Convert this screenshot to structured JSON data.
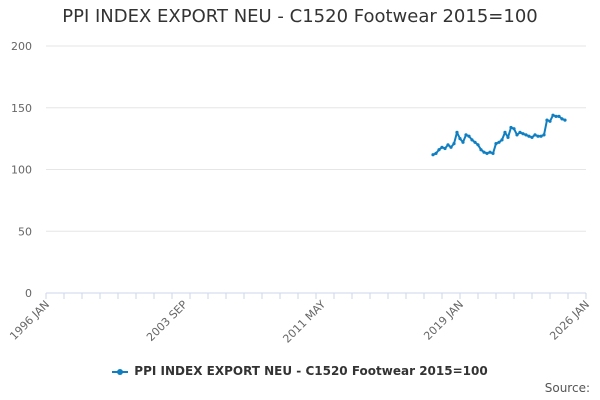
{
  "title": "PPI INDEX EXPORT NEU - C1520 Footwear 2015=100",
  "credits": "Source:",
  "colors": {
    "series": "#0f7fc2",
    "grid": "#e6e6e6",
    "axis": "#ccd6eb",
    "tick_text": "#666666"
  },
  "chart_data": {
    "type": "line",
    "title": "PPI INDEX EXPORT NEU - C1520 Footwear 2015=100",
    "xlabel": "",
    "ylabel": "",
    "ylim": [
      0,
      200
    ],
    "yticks": [
      0,
      50,
      100,
      150,
      200
    ],
    "xlim": [
      "1996-01",
      "2026-01"
    ],
    "xticks": [
      {
        "date": "1996-01",
        "label": "1996 JAN"
      },
      {
        "date": "2003-09",
        "label": "2003 SEP"
      },
      {
        "date": "2011-05",
        "label": "2011 MAY"
      },
      {
        "date": "2019-01",
        "label": "2019 JAN"
      },
      {
        "date": "2026-01",
        "label": "2026 JAN"
      }
    ],
    "grid": true,
    "legend": "bottom-center",
    "series": [
      {
        "name": "PPI INDEX EXPORT NEU - C1520 Footwear 2015=100",
        "points": [
          [
            "2017-07",
            112
          ],
          [
            "2017-09",
            113
          ],
          [
            "2017-11",
            116
          ],
          [
            "2018-01",
            118
          ],
          [
            "2018-03",
            117
          ],
          [
            "2018-05",
            120
          ],
          [
            "2018-07",
            118
          ],
          [
            "2018-09",
            121
          ],
          [
            "2018-11",
            130
          ],
          [
            "2019-01",
            125
          ],
          [
            "2019-03",
            122
          ],
          [
            "2019-05",
            128
          ],
          [
            "2019-07",
            127
          ],
          [
            "2019-09",
            124
          ],
          [
            "2019-11",
            122
          ],
          [
            "2020-01",
            120
          ],
          [
            "2020-03",
            116
          ],
          [
            "2020-05",
            114
          ],
          [
            "2020-07",
            113
          ],
          [
            "2020-09",
            114
          ],
          [
            "2020-11",
            113
          ],
          [
            "2021-01",
            121
          ],
          [
            "2021-03",
            122
          ],
          [
            "2021-05",
            124
          ],
          [
            "2021-07",
            130
          ],
          [
            "2021-09",
            126
          ],
          [
            "2021-11",
            134
          ],
          [
            "2022-01",
            133
          ],
          [
            "2022-03",
            128
          ],
          [
            "2022-05",
            130
          ],
          [
            "2022-07",
            129
          ],
          [
            "2022-09",
            128
          ],
          [
            "2022-11",
            127
          ],
          [
            "2023-01",
            126
          ],
          [
            "2023-03",
            128
          ],
          [
            "2023-05",
            127
          ],
          [
            "2023-07",
            127
          ],
          [
            "2023-09",
            128
          ],
          [
            "2023-11",
            140
          ],
          [
            "2024-01",
            139
          ],
          [
            "2024-03",
            144
          ],
          [
            "2024-05",
            143
          ],
          [
            "2024-07",
            143
          ],
          [
            "2024-09",
            141
          ],
          [
            "2024-11",
            140
          ]
        ]
      }
    ]
  }
}
